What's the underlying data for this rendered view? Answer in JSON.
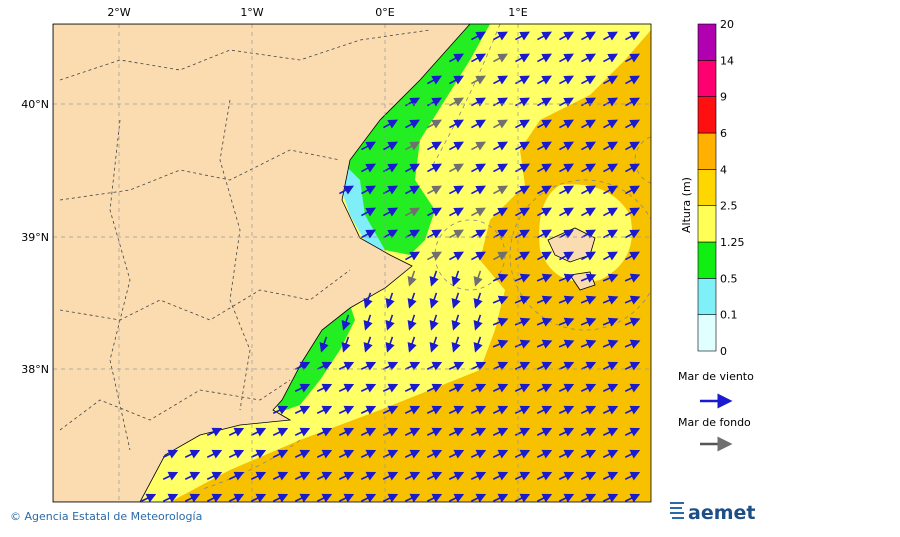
{
  "map": {
    "lon_labels": [
      "2°W",
      "1°W",
      "0°E",
      "1°E"
    ],
    "lat_labels": [
      "40°N",
      "39°N",
      "38°N"
    ]
  },
  "colorbar": {
    "title": "Altura (m)",
    "labels": [
      "0",
      "0.1",
      "0.5",
      "1.25",
      "2.5",
      "4",
      "6",
      "9",
      "14",
      "20"
    ]
  },
  "legend": {
    "items": [
      {
        "label": "Mar de viento"
      },
      {
        "label": "Mar de fondo"
      }
    ]
  },
  "footer": {
    "credit": "© Agencia Estatal de Meteorología",
    "logo": "aemet"
  }
}
